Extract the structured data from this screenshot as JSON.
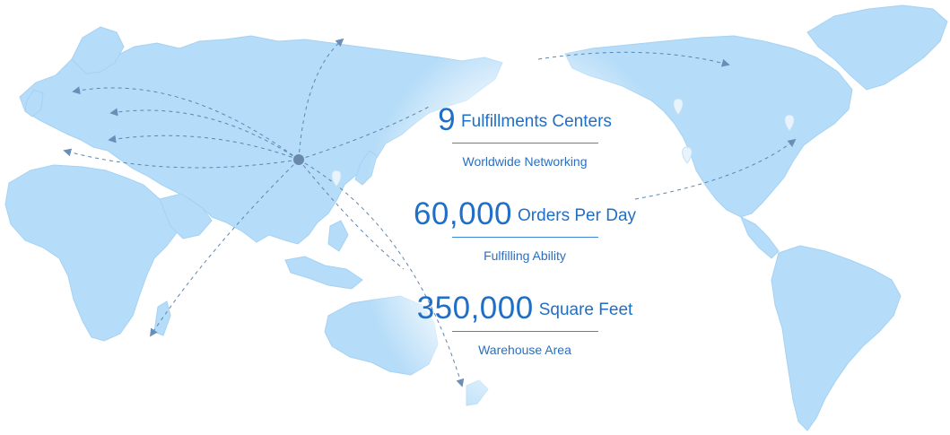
{
  "colors": {
    "land": "#b5dcf8",
    "land_edge": "#a6d2f3",
    "route_line": "#5d86b0",
    "hub": "#6a88aa",
    "accent_text": "#1f6fc9",
    "caption_text": "#2a6fbf",
    "rule": "#3f86d5"
  },
  "map": {
    "icons": [
      "location-pin-icon",
      "location-pin-icon",
      "location-pin-icon",
      "location-pin-icon"
    ]
  },
  "stats": [
    {
      "number": "9",
      "unit": "Fulfillments Centers",
      "caption": "Worldwide Networking"
    },
    {
      "number": "60,000",
      "unit": "Orders Per Day",
      "caption": "Fulfilling Ability"
    },
    {
      "number": "350,000",
      "unit": "Square Feet",
      "caption": "Warehouse Area"
    }
  ]
}
